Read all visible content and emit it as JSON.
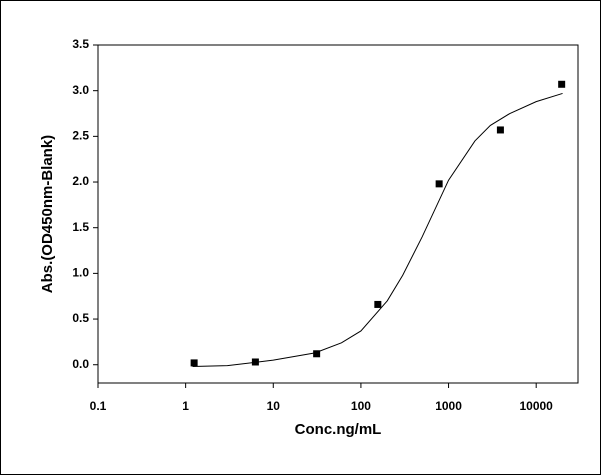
{
  "chart_data": {
    "type": "scatter",
    "xlabel": "Conc.ng/mL",
    "ylabel": "Abs.(OD450nm-Blank)",
    "xscale": "log",
    "xlim": [
      0.1,
      30000
    ],
    "xticks": [
      0.1,
      1,
      10,
      100,
      1000,
      10000
    ],
    "ylim": [
      -0.2,
      3.5
    ],
    "yticks": [
      {
        "value": 0,
        "label": "0.0"
      },
      0.5,
      {
        "value": 1,
        "label": "1.0"
      },
      1.5,
      {
        "value": 2,
        "label": "2.0"
      },
      2.5,
      {
        "value": 3,
        "label": "3.0"
      },
      3.5
    ],
    "series": [
      {
        "type": "line",
        "color": "#000000",
        "x": [
          1.2,
          3,
          10,
          30,
          60,
          100,
          200,
          300,
          500,
          1000,
          2000,
          3000,
          5000,
          10000,
          20000
        ],
        "values": [
          -0.02,
          -0.01,
          0.05,
          0.13,
          0.24,
          0.37,
          0.7,
          0.98,
          1.4,
          2.02,
          2.45,
          2.62,
          2.75,
          2.88,
          2.97
        ]
      },
      {
        "type": "scatter",
        "color": "#000000",
        "x": [
          1.25,
          6.25,
          31.25,
          156,
          781,
          3906,
          19531
        ],
        "values": [
          0.02,
          0.03,
          0.12,
          0.66,
          1.98,
          2.57,
          3.07
        ]
      }
    ]
  }
}
